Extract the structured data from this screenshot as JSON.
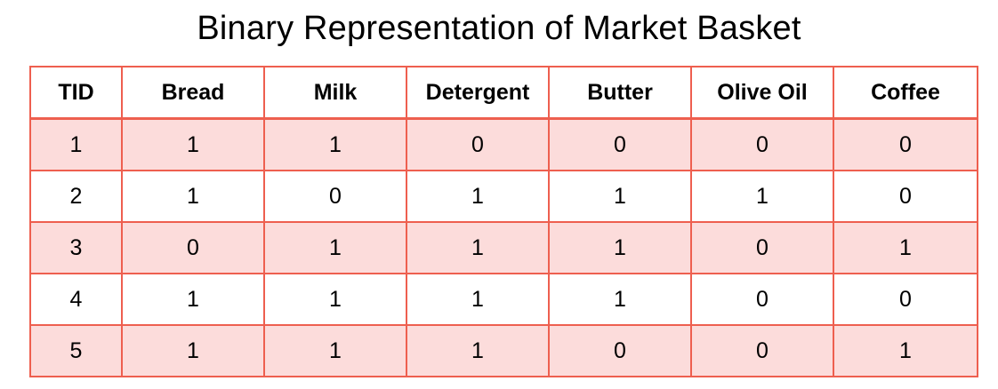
{
  "title": "Binary Representation of Market Basket",
  "table": {
    "headers": [
      "TID",
      "Bread",
      "Milk",
      "Detergent",
      "Butter",
      "Olive Oil",
      "Coffee"
    ],
    "rows": [
      [
        "1",
        "1",
        "1",
        "0",
        "0",
        "0",
        "0"
      ],
      [
        "2",
        "1",
        "0",
        "1",
        "1",
        "1",
        "0"
      ],
      [
        "3",
        "0",
        "1",
        "1",
        "1",
        "0",
        "1"
      ],
      [
        "4",
        "1",
        "1",
        "1",
        "1",
        "0",
        "0"
      ],
      [
        "5",
        "1",
        "1",
        "1",
        "0",
        "0",
        "1"
      ]
    ]
  },
  "colors": {
    "border": "#ee5f4f",
    "row_shade": "#fcdcdb",
    "background": "#ffffff"
  }
}
